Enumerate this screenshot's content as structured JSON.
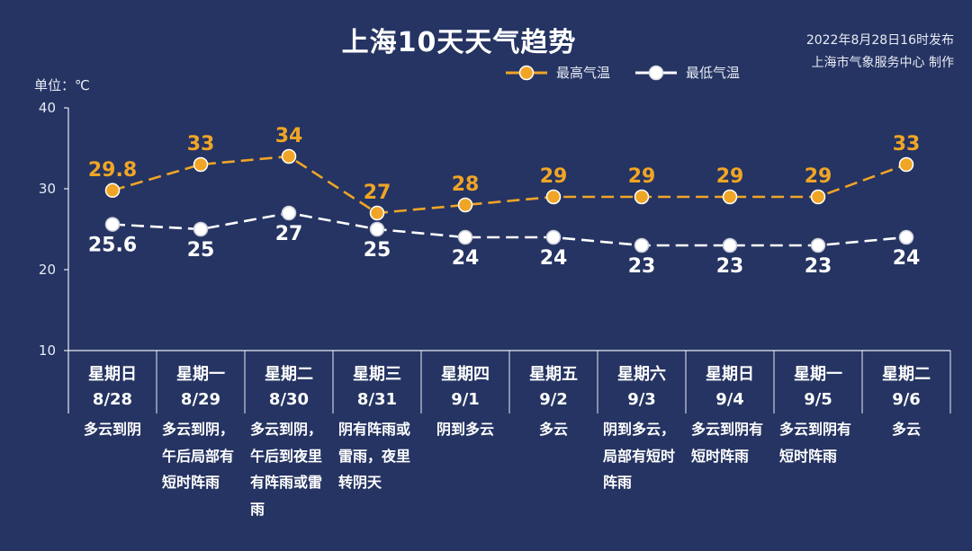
{
  "header": {
    "title": "上海10天天气趋势",
    "publish_time": "2022年8月28日16时发布",
    "publisher": "上海市气象服务中心 制作"
  },
  "unit_label": "单位：℃",
  "legend": {
    "high_label": "最高气温",
    "low_label": "最低气温"
  },
  "colors": {
    "background": "#253462",
    "high": "#f0a526",
    "low": "#ffffff",
    "axis": "#e9ecf5"
  },
  "chart_data": {
    "type": "line",
    "ylim": [
      10,
      40
    ],
    "yticks": [
      10,
      20,
      30,
      40
    ],
    "ylabel": "单位：℃",
    "categories": [
      "8/28",
      "8/29",
      "8/30",
      "8/31",
      "9/1",
      "9/2",
      "9/3",
      "9/4",
      "9/5",
      "9/6"
    ],
    "day_names": [
      "星期日",
      "星期一",
      "星期二",
      "星期三",
      "星期四",
      "星期五",
      "星期六",
      "星期日",
      "星期一",
      "星期二"
    ],
    "series": [
      {
        "name": "最高气温",
        "values": [
          29.8,
          33,
          34,
          27,
          28,
          29,
          29,
          29,
          29,
          33
        ],
        "labels": [
          "29.8",
          "33",
          "34",
          "27",
          "28",
          "29",
          "29",
          "29",
          "29",
          "33"
        ]
      },
      {
        "name": "最低气温",
        "values": [
          25.6,
          25,
          27,
          25,
          24,
          24,
          23,
          23,
          23,
          24
        ],
        "labels": [
          "25.6",
          "25",
          "27",
          "25",
          "24",
          "24",
          "23",
          "23",
          "23",
          "24"
        ]
      }
    ],
    "weather": [
      "多云到阴",
      "多云到阴，午后局部有短时阵雨",
      "多云到阴，午后到夜里有阵雨或雷雨",
      "阴有阵雨或雷雨，夜里转阴天",
      "阴到多云",
      "多云",
      "阴到多云，局部有短时阵雨",
      "多云到阴有短时阵雨",
      "多云到阴有短时阵雨",
      "多云"
    ]
  }
}
